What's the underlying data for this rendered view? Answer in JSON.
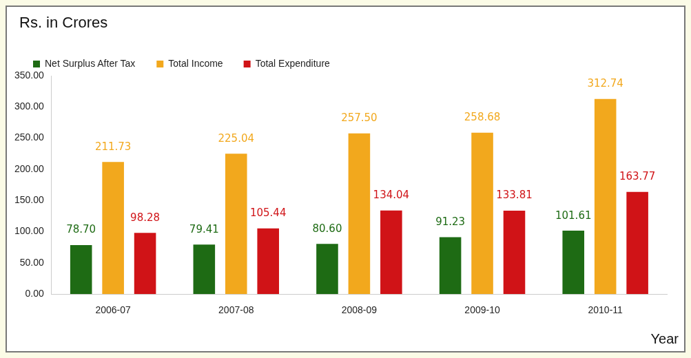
{
  "chart_data": {
    "type": "bar",
    "ylabel": "Rs. in Crores",
    "xlabel": "Year",
    "categories": [
      "2006-07",
      "2007-08",
      "2008-09",
      "2009-10",
      "2010-11"
    ],
    "series": [
      {
        "name": "Net Surplus After Tax",
        "color": "#1e6b14",
        "values": [
          78.7,
          79.41,
          80.6,
          91.23,
          101.61
        ],
        "value_labels": [
          "78.70",
          "79.41",
          "80.60",
          "91.23",
          "101.61"
        ]
      },
      {
        "name": "Total Income",
        "color": "#f2a81d",
        "values": [
          211.73,
          225.04,
          257.5,
          258.68,
          312.74
        ],
        "value_labels": [
          "211.73",
          "225.04",
          "257.50",
          "258.68",
          "312.74"
        ]
      },
      {
        "name": "Total Expenditure",
        "color": "#d01317",
        "values": [
          98.28,
          105.44,
          134.04,
          133.81,
          163.77
        ],
        "value_labels": [
          "98.28",
          "105.44",
          "134.04",
          "133.81",
          "163.77"
        ]
      }
    ],
    "ylim": [
      0,
      350
    ],
    "yticks": [
      {
        "value": 0,
        "label": "0.00"
      },
      {
        "value": 50,
        "label": "50.00"
      },
      {
        "value": 100,
        "label": "100.00"
      },
      {
        "value": 150,
        "label": "150.00"
      },
      {
        "value": 200,
        "label": "200.00"
      },
      {
        "value": 250,
        "label": "250.00"
      },
      {
        "value": 300,
        "label": "300.00"
      },
      {
        "value": 350,
        "label": "350.00"
      }
    ],
    "grid": false,
    "legend": "top left"
  }
}
